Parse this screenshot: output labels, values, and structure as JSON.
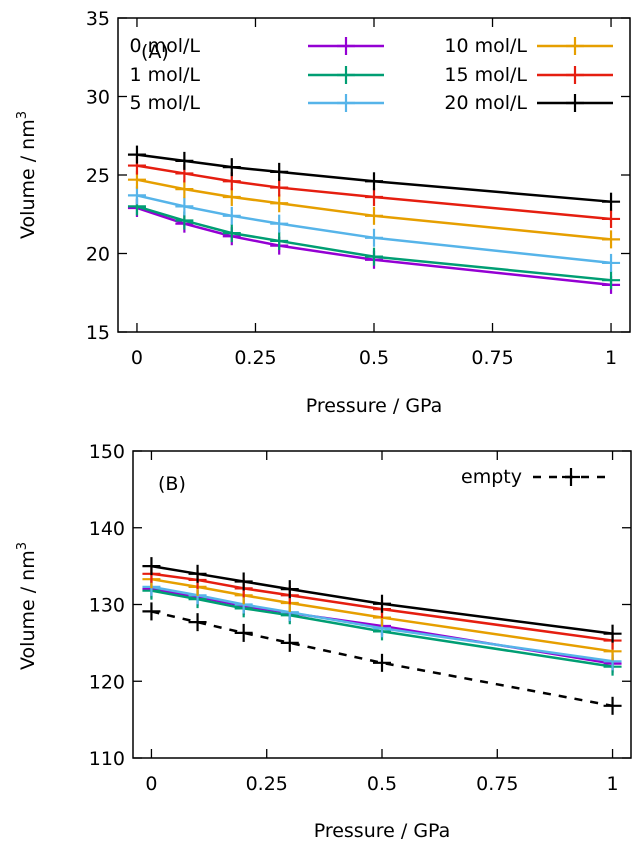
{
  "chart_data": [
    {
      "type": "line",
      "panel_label": "(A)",
      "xlabel": "Pressure / GPa",
      "ylabel": "Volume / nm",
      "ylabel_sup": "3",
      "xlim": [
        -0.04,
        1.04
      ],
      "ylim": [
        15,
        35
      ],
      "x_ticks": [
        0,
        0.25,
        0.5,
        0.75,
        1
      ],
      "x_tick_labels": [
        "0",
        "0.25",
        "0.5",
        "0.75",
        "1"
      ],
      "y_ticks": [
        15,
        20,
        25,
        30,
        35
      ],
      "y_tick_labels": [
        "15",
        "20",
        "25",
        "30",
        "35"
      ],
      "x": [
        0,
        0.1,
        0.2,
        0.3,
        0.5,
        1
      ],
      "legend_position": "top",
      "series": [
        {
          "name": "0 mol/L",
          "color": "#9400d3",
          "values": [
            22.9,
            21.9,
            21.1,
            20.5,
            19.6,
            18.0
          ]
        },
        {
          "name": "1 mol/L",
          "color": "#009e73",
          "values": [
            23.0,
            22.1,
            21.3,
            20.8,
            19.8,
            18.3
          ]
        },
        {
          "name": "5 mol/L",
          "color": "#56b4e9",
          "values": [
            23.7,
            23.0,
            22.4,
            21.9,
            21.0,
            19.4
          ]
        },
        {
          "name": "10 mol/L",
          "color": "#e69f00",
          "values": [
            24.7,
            24.1,
            23.6,
            23.2,
            22.4,
            20.9
          ]
        },
        {
          "name": "15 mol/L",
          "color": "#e51e10",
          "values": [
            25.6,
            25.1,
            24.6,
            24.2,
            23.6,
            22.2
          ]
        },
        {
          "name": "20 mol/L",
          "color": "#000000",
          "values": [
            26.3,
            25.9,
            25.5,
            25.2,
            24.6,
            23.3
          ]
        }
      ]
    },
    {
      "type": "line",
      "panel_label": "(B)",
      "xlabel": "Pressure / GPa",
      "ylabel": "Volume / nm",
      "ylabel_sup": "3",
      "xlim": [
        -0.04,
        1.04
      ],
      "ylim": [
        110,
        150
      ],
      "x_ticks": [
        0,
        0.25,
        0.5,
        0.75,
        1
      ],
      "x_tick_labels": [
        "0",
        "0.25",
        "0.5",
        "0.75",
        "1"
      ],
      "y_ticks": [
        110,
        120,
        130,
        140,
        150
      ],
      "y_tick_labels": [
        "110",
        "120",
        "130",
        "140",
        "150"
      ],
      "x": [
        0,
        0.1,
        0.2,
        0.3,
        0.5,
        1
      ],
      "legend_position": "top-right",
      "series": [
        {
          "color": "#9400d3",
          "values": [
            132.0,
            131.0,
            129.8,
            128.9,
            127.2,
            122.3
          ]
        },
        {
          "color": "#009e73",
          "values": [
            131.8,
            130.7,
            129.5,
            128.6,
            126.5,
            121.9
          ]
        },
        {
          "color": "#56b4e9",
          "values": [
            132.3,
            131.2,
            130.0,
            129.0,
            126.9,
            122.6
          ]
        },
        {
          "color": "#e69f00",
          "values": [
            133.3,
            132.3,
            131.2,
            130.2,
            128.3,
            123.9
          ]
        },
        {
          "color": "#e51e10",
          "values": [
            134.0,
            133.2,
            132.1,
            131.2,
            129.4,
            125.3
          ]
        },
        {
          "color": "#000000",
          "values": [
            135.0,
            134.0,
            133.0,
            132.0,
            130.1,
            126.2
          ]
        },
        {
          "name": "empty",
          "color": "#000000",
          "dashed": true,
          "values": [
            129.1,
            127.7,
            126.3,
            125.0,
            122.4,
            116.8
          ]
        }
      ]
    }
  ]
}
